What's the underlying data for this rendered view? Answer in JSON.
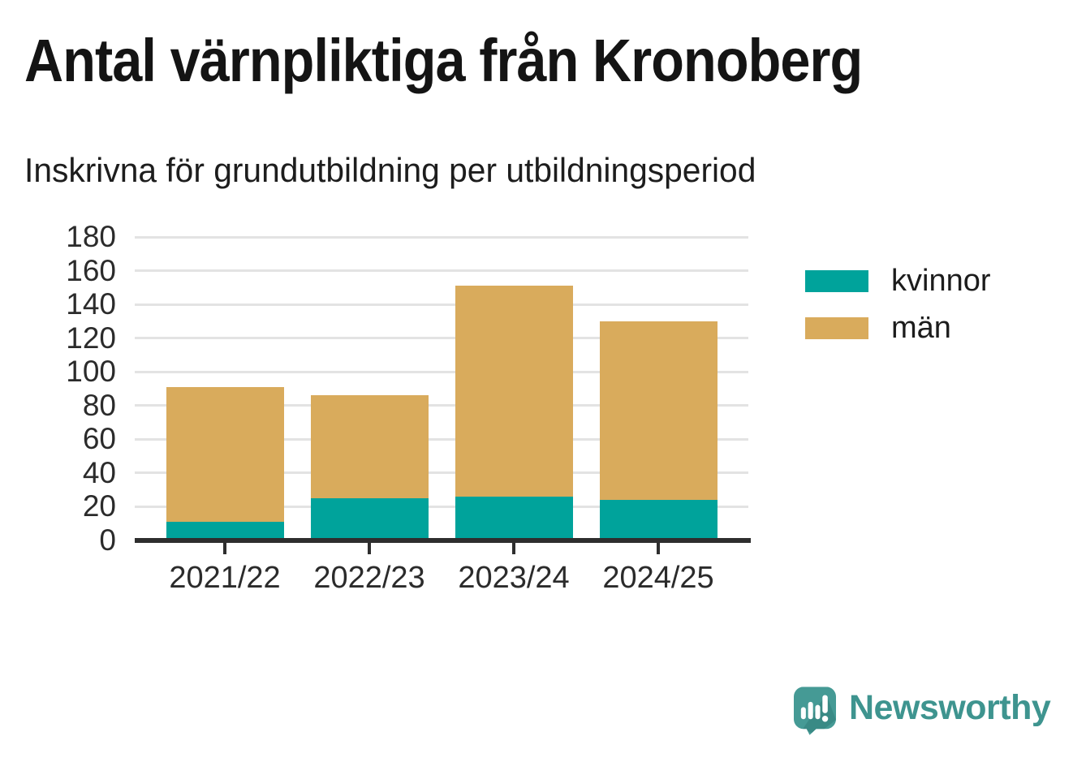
{
  "header": {
    "title": "Antal värnpliktiga från Kronoberg",
    "subtitle": "Inskrivna för grundutbildning per utbildningsperiod"
  },
  "chart_data": {
    "type": "bar",
    "stacked": true,
    "title": "Antal värnpliktiga från Kronoberg",
    "subtitle": "Inskrivna för grundutbildning per utbildningsperiod",
    "categories": [
      "2021/22",
      "2022/23",
      "2023/24",
      "2024/25"
    ],
    "series": [
      {
        "name": "kvinnor",
        "color": "#00a39b",
        "values": [
          11,
          25,
          26,
          24
        ]
      },
      {
        "name": "män",
        "color": "#d9ab5c",
        "values": [
          80,
          61,
          125,
          106
        ]
      }
    ],
    "totals": [
      91,
      86,
      151,
      130
    ],
    "xlabel": "",
    "ylabel": "",
    "ylim": [
      0,
      180
    ],
    "yticks": [
      0,
      20,
      40,
      60,
      80,
      100,
      120,
      140,
      160,
      180
    ],
    "grid": "horizontal",
    "gridline_color": "#e3e3e3",
    "axis_color": "#2e2e2e",
    "legend_position": "right"
  },
  "branding": {
    "logo_text": "Newsworthy",
    "logo_color": "#3e948f",
    "icon": "newsworthy-speech-bubble-chart-icon",
    "icon_fill": "#459a95",
    "icon_shade": "#2f7d78"
  }
}
